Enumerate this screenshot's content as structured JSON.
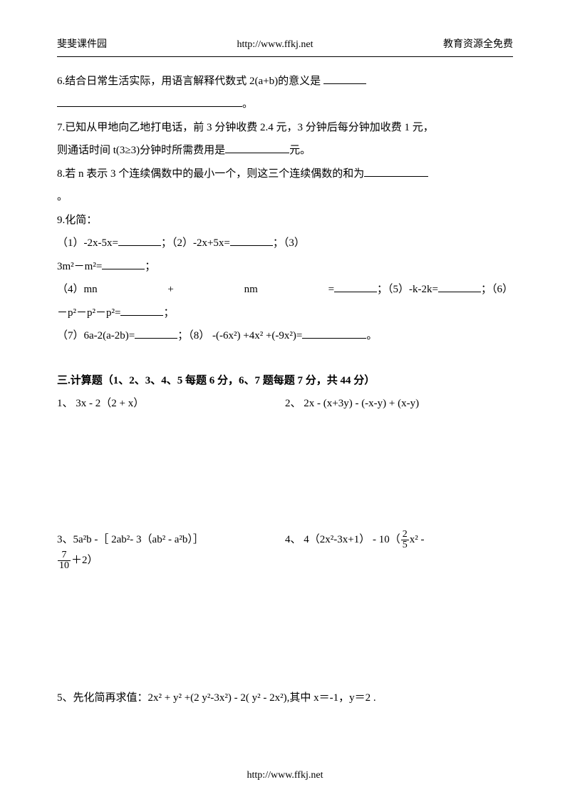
{
  "header": {
    "left": "斐斐课件园",
    "center": "http://www.ffkj.net",
    "right": "教育资源全免费"
  },
  "q6": {
    "text": "6.结合日常生活实际，用语言解释代数式 2(a+b)的意义是",
    "tail": "。"
  },
  "q7": {
    "line1a": "7.已知从甲地向乙地打电话，前 3 分钟收费 2.4 元，3 分钟后每分钟加收费 1 元，",
    "line2a": "则通话时间 t(3≥3)分钟时所需费用是",
    "line2b": "元。"
  },
  "q8": {
    "a": "8.若 n 表示 3 个连续偶数中的最小一个，则这三个连续偶数的和为",
    "tail": "。"
  },
  "q9": {
    "head": "9.化简：",
    "p1a": "（1）-2x-5x=",
    "p1b": "；（2）-2x+5x=",
    "p1c": "；（3）",
    "p2a": "3m²－m²=",
    "p2b": "；",
    "p3a": "（4）mn",
    "p3b": "+",
    "p3c": "nm",
    "p3d": "=",
    "p3e": "；（5）-k-2k=",
    "p3f": "；（6）",
    "p4a": "－p²－p²－p²=",
    "p4b": "；",
    "p5a": "（7）6a-2(a-2b)=",
    "p5b": "；（8） -(-6x²) +4x² +(-9x²)=",
    "p5c": "。"
  },
  "section3_title": "三.计算题（1、2、3、4、5 每题 6 分，6、7 题每题 7 分，共 44 分）",
  "c1": "1、  3x - 2（2 + x）",
  "c2": "2、 2x - (x+3y) - (-x-y) + (x-y)",
  "c3a": "3、5a²b -［ 2ab²- 3（ab² - a²b）］",
  "c4a": "4、 4（2x²-3x+1） - 10（",
  "c4frac1_num": "2",
  "c4frac1_den": "5",
  "c4b": "x² -",
  "c4frac2_num": "7",
  "c4frac2_den": "10",
  "c4c": "＋2）",
  "c5": "5、先化简再求值：2x² + y² +(2 y²-3x²) - 2( y² - 2x²),其中 x＝-1，y＝2 .",
  "footer": "http://www.ffkj.net"
}
